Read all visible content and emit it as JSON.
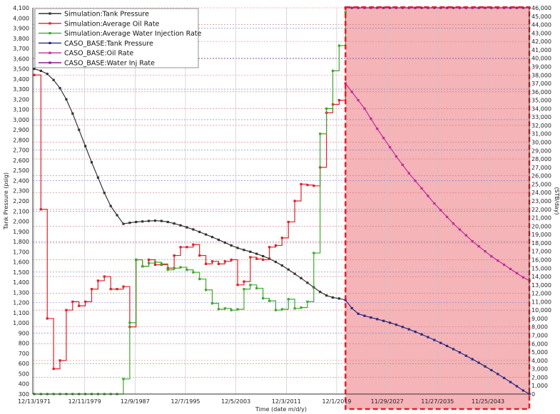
{
  "chart_data": {
    "type": "line",
    "xlabel": "Time (date m/d/y)",
    "ylabel_left": "Tank Pressure (psig)",
    "ylabel_right": "(STB/day)",
    "x_tick_labels": [
      "12/13/1971",
      "12/11/1979",
      "12/9/1987",
      "12/7/1995",
      "12/5/2003",
      "12/3/2011",
      "12/1/2019",
      "11/29/2027",
      "11/27/2035",
      "11/25/2043"
    ],
    "x_range_years": [
      1971.95,
      2050.0
    ],
    "left_axis": {
      "min": 300,
      "max": 4100,
      "step": 100
    },
    "right_axis": {
      "min": 0,
      "max": 46000,
      "step": 1000
    },
    "forecast_region": {
      "start_year": 2021.0,
      "color": "#f4b4b8",
      "border_color": "#e0202a"
    },
    "grid": true,
    "legend_position": "top-left",
    "series": [
      {
        "name": "Simulation:Tank Pressure",
        "axis": "left",
        "color": "#333333",
        "style": "line",
        "points": [
          [
            1971.95,
            3500
          ],
          [
            1973.0,
            3480
          ],
          [
            1974.0,
            3450
          ],
          [
            1975.0,
            3390
          ],
          [
            1976.0,
            3310
          ],
          [
            1977.0,
            3200
          ],
          [
            1978.0,
            3060
          ],
          [
            1979.0,
            2900
          ],
          [
            1980.0,
            2740
          ],
          [
            1981.0,
            2580
          ],
          [
            1982.0,
            2430
          ],
          [
            1983.0,
            2280
          ],
          [
            1984.0,
            2150
          ],
          [
            1985.0,
            2060
          ],
          [
            1986.0,
            1975
          ],
          [
            1987.0,
            1985
          ],
          [
            1988.0,
            1993
          ],
          [
            1989.0,
            1998
          ],
          [
            1990.0,
            2003
          ],
          [
            1991.0,
            2006
          ],
          [
            1992.0,
            2003
          ],
          [
            1993.0,
            1993
          ],
          [
            1994.0,
            1978
          ],
          [
            1995.0,
            1960
          ],
          [
            1996.0,
            1940
          ],
          [
            1997.0,
            1920
          ],
          [
            1998.0,
            1895
          ],
          [
            1999.0,
            1870
          ],
          [
            2000.0,
            1845
          ],
          [
            2001.0,
            1818
          ],
          [
            2002.0,
            1790
          ],
          [
            2003.0,
            1762
          ],
          [
            2004.0,
            1738
          ],
          [
            2005.0,
            1718
          ],
          [
            2006.0,
            1700
          ],
          [
            2007.0,
            1680
          ],
          [
            2008.0,
            1657
          ],
          [
            2009.0,
            1632
          ],
          [
            2010.0,
            1600
          ],
          [
            2011.0,
            1565
          ],
          [
            2012.0,
            1525
          ],
          [
            2013.0,
            1483
          ],
          [
            2014.0,
            1440
          ],
          [
            2015.0,
            1395
          ],
          [
            2016.0,
            1350
          ],
          [
            2017.0,
            1305
          ],
          [
            2018.0,
            1270
          ],
          [
            2019.0,
            1250
          ],
          [
            2020.0,
            1240
          ],
          [
            2021.0,
            1225
          ]
        ]
      },
      {
        "name": "Simulation:Average Oil Rate",
        "axis": "right",
        "color": "#e0202a",
        "style": "step",
        "points": [
          [
            1971.95,
            38000
          ],
          [
            1973.0,
            22000
          ],
          [
            1974.0,
            9000
          ],
          [
            1975.0,
            3000
          ],
          [
            1976.0,
            4000
          ],
          [
            1977.0,
            10000
          ],
          [
            1978.0,
            11000
          ],
          [
            1979.0,
            10500
          ],
          [
            1980.0,
            11000
          ],
          [
            1981.0,
            12500
          ],
          [
            1982.0,
            13500
          ],
          [
            1983.0,
            14000
          ],
          [
            1984.0,
            12500
          ],
          [
            1985.0,
            12500
          ],
          [
            1986.0,
            12800
          ],
          [
            1987.0,
            8000
          ],
          [
            1988.0,
            16000
          ],
          [
            1989.0,
            15200
          ],
          [
            1990.0,
            16000
          ],
          [
            1991.0,
            15400
          ],
          [
            1992.0,
            15400
          ],
          [
            1993.0,
            15000
          ],
          [
            1994.0,
            16500
          ],
          [
            1995.0,
            17500
          ],
          [
            1996.0,
            17500
          ],
          [
            1997.0,
            17800
          ],
          [
            1998.0,
            16500
          ],
          [
            1999.0,
            15500
          ],
          [
            2000.0,
            15800
          ],
          [
            2001.0,
            15500
          ],
          [
            2002.0,
            15800
          ],
          [
            2003.0,
            16000
          ],
          [
            2004.0,
            13000
          ],
          [
            2005.0,
            13400
          ],
          [
            2006.0,
            16300
          ],
          [
            2007.0,
            16100
          ],
          [
            2008.0,
            16000
          ],
          [
            2009.0,
            17500
          ],
          [
            2010.0,
            17700
          ],
          [
            2011.0,
            18600
          ],
          [
            2012.0,
            20500
          ],
          [
            2013.0,
            23000
          ],
          [
            2014.0,
            25000
          ],
          [
            2015.0,
            24900
          ],
          [
            2016.0,
            24800
          ],
          [
            2017.0,
            27000
          ],
          [
            2018.0,
            33500
          ],
          [
            2019.0,
            34500
          ],
          [
            2020.0,
            35000
          ],
          [
            2021.0,
            37000
          ]
        ]
      },
      {
        "name": "Simulation:Average Water Injection Rate",
        "axis": "right",
        "color": "#3ea82e",
        "style": "step",
        "points": [
          [
            1971.95,
            0
          ],
          [
            1973.0,
            0
          ],
          [
            1974.0,
            0
          ],
          [
            1975.0,
            0
          ],
          [
            1976.0,
            0
          ],
          [
            1977.0,
            0
          ],
          [
            1978.0,
            0
          ],
          [
            1979.0,
            0
          ],
          [
            1980.0,
            0
          ],
          [
            1981.0,
            0
          ],
          [
            1982.0,
            0
          ],
          [
            1983.0,
            0
          ],
          [
            1984.0,
            0
          ],
          [
            1985.0,
            0
          ],
          [
            1986.0,
            1800
          ],
          [
            1987.0,
            8500
          ],
          [
            1988.0,
            16000
          ],
          [
            1989.0,
            15200
          ],
          [
            1990.0,
            15600
          ],
          [
            1991.0,
            15700
          ],
          [
            1992.0,
            15500
          ],
          [
            1993.0,
            14800
          ],
          [
            1994.0,
            15000
          ],
          [
            1995.0,
            15100
          ],
          [
            1996.0,
            14800
          ],
          [
            1997.0,
            14500
          ],
          [
            1998.0,
            13700
          ],
          [
            1999.0,
            12400
          ],
          [
            2000.0,
            10800
          ],
          [
            2001.0,
            10100
          ],
          [
            2002.0,
            10200
          ],
          [
            2003.0,
            10000
          ],
          [
            2004.0,
            10100
          ],
          [
            2005.0,
            12500
          ],
          [
            2006.0,
            13000
          ],
          [
            2007.0,
            12600
          ],
          [
            2008.0,
            11400
          ],
          [
            2009.0,
            11100
          ],
          [
            2010.0,
            10000
          ],
          [
            2011.0,
            10100
          ],
          [
            2012.0,
            11300
          ],
          [
            2013.0,
            10200
          ],
          [
            2014.0,
            10300
          ],
          [
            2015.0,
            11000
          ],
          [
            2016.0,
            16800
          ],
          [
            2017.0,
            31000
          ],
          [
            2018.0,
            34000
          ],
          [
            2019.0,
            38500
          ],
          [
            2020.0,
            41500
          ],
          [
            2021.0,
            45500
          ]
        ]
      },
      {
        "name": "CASO_BASE:Tank Pressure",
        "axis": "left",
        "color": "#2a2a80",
        "style": "line",
        "points": [
          [
            2021.0,
            1225
          ],
          [
            2022.0,
            1145
          ],
          [
            2023.0,
            1090
          ],
          [
            2024.0,
            1070
          ],
          [
            2025.0,
            1053
          ],
          [
            2026.0,
            1037
          ],
          [
            2027.0,
            1020
          ],
          [
            2028.0,
            1002
          ],
          [
            2029.0,
            982
          ],
          [
            2030.0,
            960
          ],
          [
            2031.0,
            937
          ],
          [
            2032.0,
            913
          ],
          [
            2033.0,
            887
          ],
          [
            2034.0,
            860
          ],
          [
            2035.0,
            832
          ],
          [
            2036.0,
            803
          ],
          [
            2037.0,
            773
          ],
          [
            2038.0,
            742
          ],
          [
            2039.0,
            710
          ],
          [
            2040.0,
            677
          ],
          [
            2041.0,
            643
          ],
          [
            2042.0,
            608
          ],
          [
            2043.0,
            572
          ],
          [
            2044.0,
            535
          ],
          [
            2045.0,
            497
          ],
          [
            2046.0,
            458
          ],
          [
            2047.0,
            418
          ],
          [
            2048.0,
            377
          ],
          [
            2049.0,
            335
          ],
          [
            2050.0,
            300
          ]
        ]
      },
      {
        "name": "CASO_BASE:Oil Rate",
        "axis": "right",
        "color": "#c02a9a",
        "style": "line",
        "points": [
          [
            2021.0,
            37000
          ],
          [
            2022.0,
            36000
          ],
          [
            2023.0,
            35000
          ],
          [
            2024.0,
            34000
          ],
          [
            2025.0,
            32800
          ],
          [
            2026.0,
            31600
          ],
          [
            2027.0,
            30500
          ],
          [
            2028.0,
            29400
          ],
          [
            2029.0,
            28300
          ],
          [
            2030.0,
            27300
          ],
          [
            2031.0,
            26300
          ],
          [
            2032.0,
            25400
          ],
          [
            2033.0,
            24500
          ],
          [
            2034.0,
            23600
          ],
          [
            2035.0,
            22700
          ],
          [
            2036.0,
            21900
          ],
          [
            2037.0,
            21100
          ],
          [
            2038.0,
            20300
          ],
          [
            2039.0,
            19600
          ],
          [
            2040.0,
            18900
          ],
          [
            2041.0,
            18200
          ],
          [
            2042.0,
            17600
          ],
          [
            2043.0,
            17000
          ],
          [
            2044.0,
            16400
          ],
          [
            2045.0,
            15900
          ],
          [
            2046.0,
            15400
          ],
          [
            2047.0,
            14900
          ],
          [
            2048.0,
            14400
          ],
          [
            2049.0,
            13900
          ],
          [
            2050.0,
            13500
          ]
        ]
      },
      {
        "name": "CASO_BASE:Water Inj Rate",
        "axis": "right",
        "color": "#8a1a8a",
        "style": "line",
        "points": [
          [
            2021.0,
            46000
          ],
          [
            2022.0,
            46000
          ],
          [
            2023.0,
            46000
          ],
          [
            2024.0,
            46000
          ],
          [
            2025.0,
            46000
          ],
          [
            2026.0,
            46000
          ],
          [
            2027.0,
            46000
          ],
          [
            2028.0,
            46000
          ],
          [
            2029.0,
            46000
          ],
          [
            2030.0,
            46000
          ],
          [
            2031.0,
            46000
          ],
          [
            2032.0,
            46000
          ],
          [
            2033.0,
            46000
          ],
          [
            2034.0,
            46000
          ],
          [
            2035.0,
            46000
          ],
          [
            2036.0,
            46000
          ],
          [
            2037.0,
            46000
          ],
          [
            2038.0,
            46000
          ],
          [
            2039.0,
            46000
          ],
          [
            2040.0,
            46000
          ],
          [
            2041.0,
            46000
          ],
          [
            2042.0,
            46000
          ],
          [
            2043.0,
            46000
          ],
          [
            2044.0,
            46000
          ],
          [
            2045.0,
            46000
          ],
          [
            2046.0,
            46000
          ],
          [
            2047.0,
            46000
          ],
          [
            2048.0,
            46000
          ],
          [
            2049.0,
            46000
          ],
          [
            2050.0,
            46000
          ]
        ]
      }
    ]
  }
}
